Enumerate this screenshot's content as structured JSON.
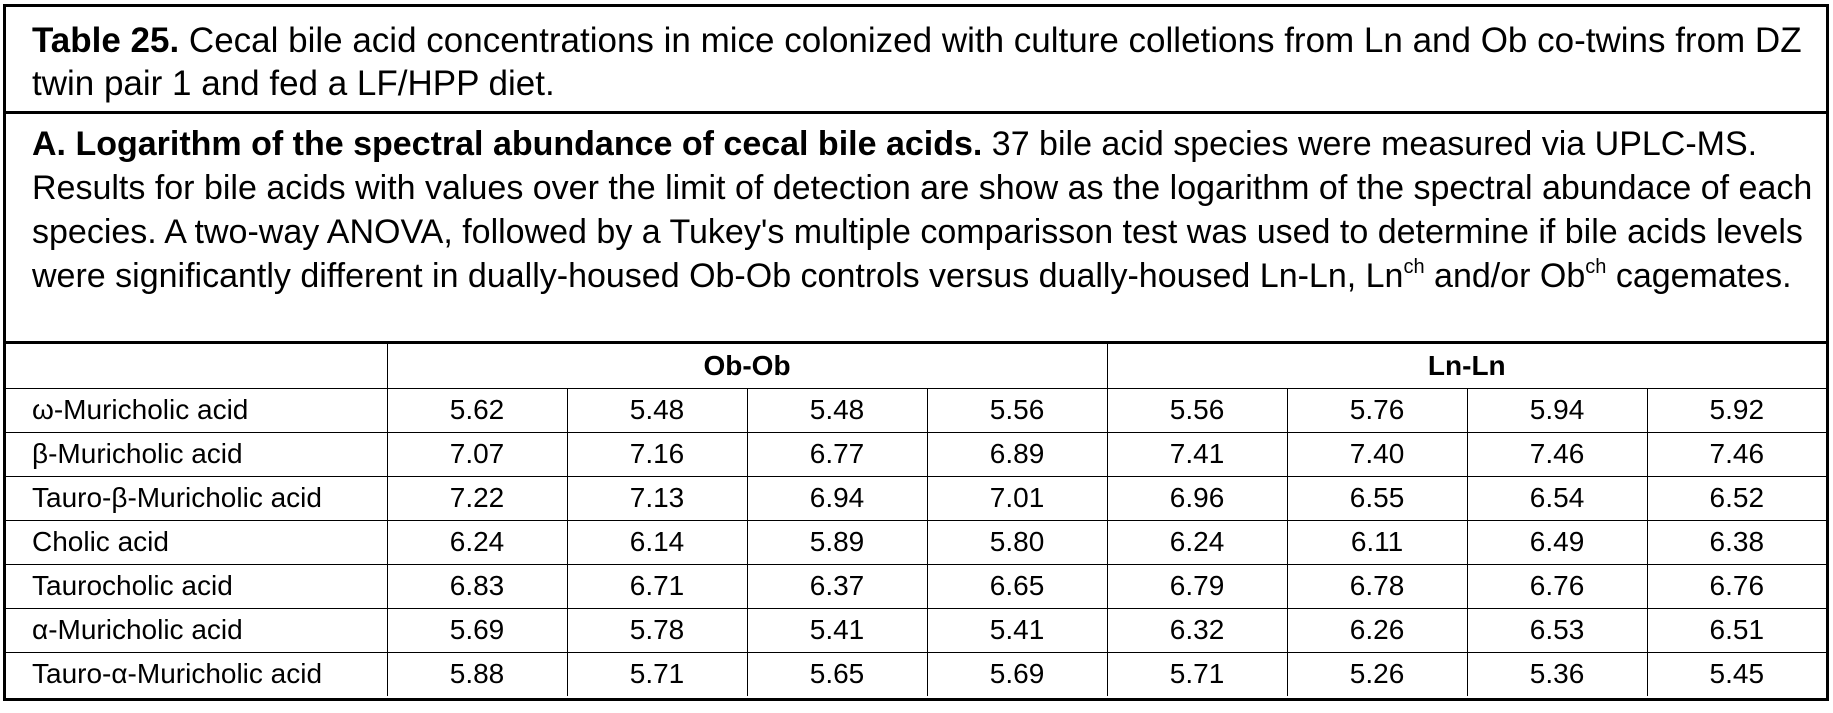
{
  "caption": {
    "title_bold": "Table 25.",
    "title_text": " Cecal bile acid concentrations in mice colonized with culture colletions from Ln and Ob co-twins from DZ twin pair 1 and fed a LF/HPP diet."
  },
  "description": {
    "heading_bold": "A. Logarithm of the spectral abundance of cecal bile acids.",
    "text_1": "  37 bile acid species were measured via UPLC-MS. Results for bile acids with values over the limit of detection are show as the logarithm of the spectral abundace of each species. A two-way ANOVA, followed by a Tukey's multiple comparisson test was used to determine if bile acids levels were significantly different in dually-housed Ob-Ob controls versus dually-housed Ln-Ln,  Ln",
    "sup_1": "ch",
    "text_2": " and/or Ob",
    "sup_2": "ch",
    "text_3": " cagemates."
  },
  "table": {
    "groups": [
      "Ob-Ob",
      "Ln-Ln"
    ],
    "rows": [
      {
        "name": "ω-Muricholic acid",
        "values": [
          "5.62",
          "5.48",
          "5.48",
          "5.56",
          "5.56",
          "5.76",
          "5.94",
          "5.92"
        ]
      },
      {
        "name": "β-Muricholic acid",
        "values": [
          "7.07",
          "7.16",
          "6.77",
          "6.89",
          "7.41",
          "7.40",
          "7.46",
          "7.46"
        ]
      },
      {
        "name": "Tauro-β-Muricholic acid",
        "values": [
          "7.22",
          "7.13",
          "6.94",
          "7.01",
          "6.96",
          "6.55",
          "6.54",
          "6.52"
        ]
      },
      {
        "name": "Cholic acid",
        "values": [
          "6.24",
          "6.14",
          "5.89",
          "5.80",
          "6.24",
          "6.11",
          "6.49",
          "6.38"
        ]
      },
      {
        "name": "Taurocholic acid",
        "values": [
          "6.83",
          "6.71",
          "6.37",
          "6.65",
          "6.79",
          "6.78",
          "6.76",
          "6.76"
        ]
      },
      {
        "name": "α-Muricholic acid",
        "values": [
          "5.69",
          "5.78",
          "5.41",
          "5.41",
          "6.32",
          "6.26",
          "6.53",
          "6.51"
        ]
      },
      {
        "name": "Tauro-α-Muricholic acid",
        "values": [
          "5.88",
          "5.71",
          "5.65",
          "5.69",
          "5.71",
          "5.26",
          "5.36",
          "5.45"
        ]
      }
    ]
  }
}
